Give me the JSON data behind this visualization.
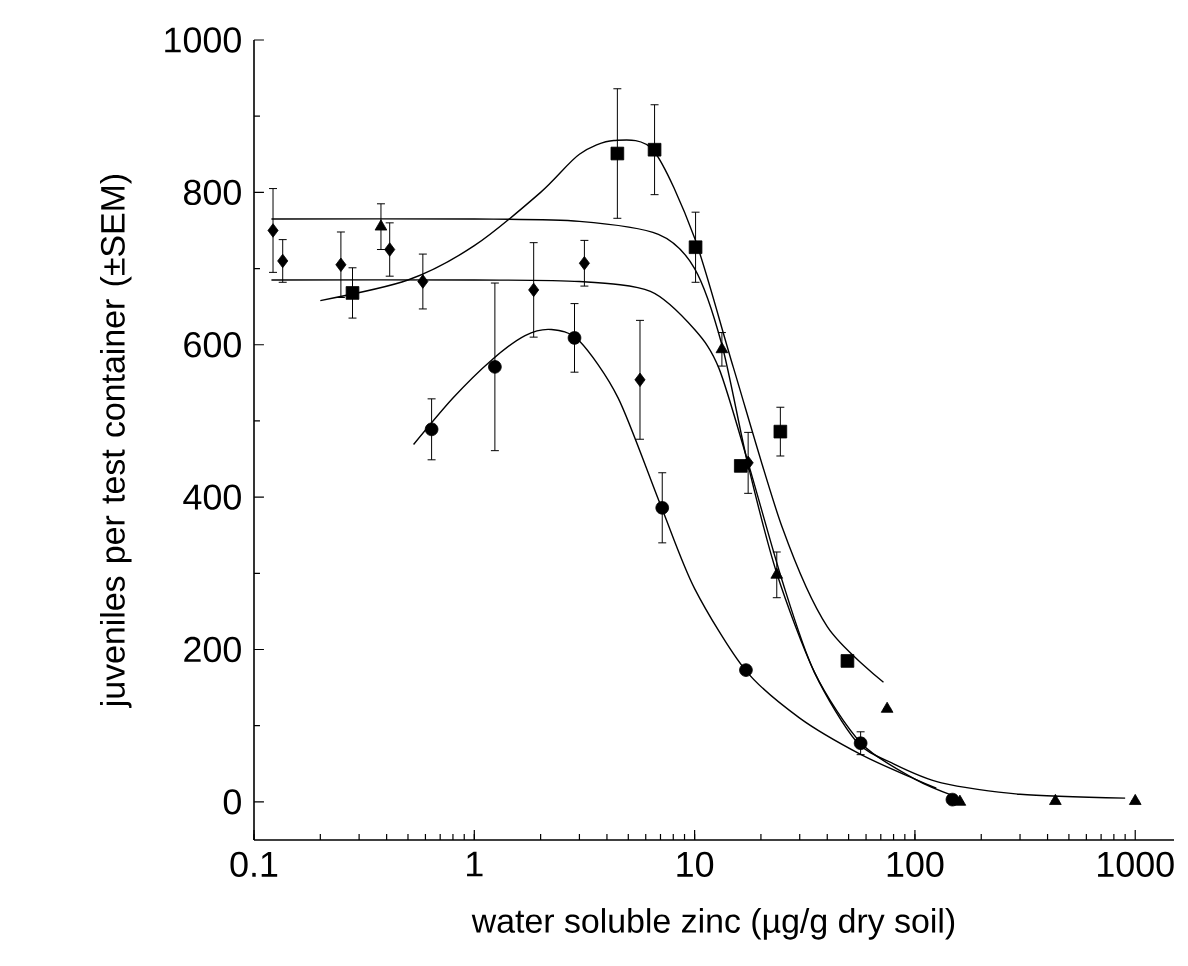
{
  "chart_data": {
    "type": "scatter",
    "xlabel": "water soluble zinc (µg/g dry soil)",
    "ylabel": "juveniles per test container (±SEM)",
    "log": "x",
    "xlim": [
      0.1,
      1500
    ],
    "ylim": [
      -50,
      1000
    ],
    "xticks": [
      0.1,
      1,
      10,
      100,
      1000
    ],
    "yticks": [
      0,
      200,
      400,
      600,
      800,
      1000
    ],
    "series": [
      {
        "marker": "diamond",
        "color": "#000000",
        "x": [
          0.122,
          0.135,
          0.248,
          0.413,
          0.584,
          1.86,
          3.16,
          5.65,
          17.5
        ],
        "values": [
          750,
          710,
          705,
          725,
          683,
          672,
          707,
          554,
          445
        ],
        "errors": [
          55,
          28,
          43,
          35,
          36,
          62,
          30,
          78,
          40
        ]
      },
      {
        "marker": "triangle",
        "color": "#000000",
        "x": [
          0.377,
          13.3,
          23.6,
          74.8,
          160,
          434,
          1000
        ],
        "values": [
          755,
          594,
          298,
          122,
          0,
          1,
          1
        ],
        "errors": [
          30,
          22,
          30,
          null,
          null,
          null,
          null
        ]
      },
      {
        "marker": "square",
        "color": "#000000",
        "x": [
          0.28,
          4.46,
          6.58,
          10.1,
          16.2,
          24.5,
          49.4
        ],
        "values": [
          668,
          851,
          856,
          728,
          441,
          486,
          185
        ],
        "errors": [
          33,
          85,
          59,
          46,
          null,
          32,
          null
        ]
      },
      {
        "marker": "circle",
        "color": "#000000",
        "x": [
          0.64,
          1.24,
          2.85,
          7.13,
          17.1,
          56.7,
          148
        ],
        "values": [
          489,
          571,
          609,
          386,
          173,
          77,
          3
        ],
        "errors": [
          40,
          110,
          45,
          46,
          null,
          15,
          null
        ]
      },
      {
        "type": "line",
        "color": "#000000",
        "x": [
          0.53,
          0.8,
          1.2,
          1.7,
          2.24,
          3,
          4.5,
          7,
          10,
          17,
          30,
          57,
          100,
          125
        ],
        "values": [
          469,
          530,
          580,
          612,
          620,
          605,
          530,
          390,
          280,
          173,
          110,
          62,
          30,
          18
        ]
      },
      {
        "type": "line",
        "color": "#000000",
        "x": [
          0.2,
          0.5,
          1,
          2,
          3,
          4.3,
          6.5,
          10,
          15,
          25,
          40,
          72
        ],
        "values": [
          658,
          685,
          730,
          800,
          850,
          868,
          855,
          740,
          570,
          360,
          230,
          157
        ]
      },
      {
        "type": "line",
        "color": "#000000",
        "x": [
          0.12,
          1,
          3,
          6.85,
          10,
          13.3,
          17.4,
          23.6,
          35,
          54,
          80,
          132,
          300,
          900
        ],
        "values": [
          765,
          765,
          762,
          745,
          700,
          600,
          445,
          300,
          170,
          80,
          50,
          25,
          10,
          5
        ]
      },
      {
        "type": "line",
        "color": "#000000",
        "x": [
          0.12,
          1,
          3,
          6.3,
          10,
          12.9,
          17.5,
          25,
          35,
          57,
          100,
          150
        ],
        "values": [
          685,
          685,
          683,
          670,
          620,
          569,
          445,
          290,
          170,
          77,
          30,
          8
        ]
      }
    ]
  }
}
